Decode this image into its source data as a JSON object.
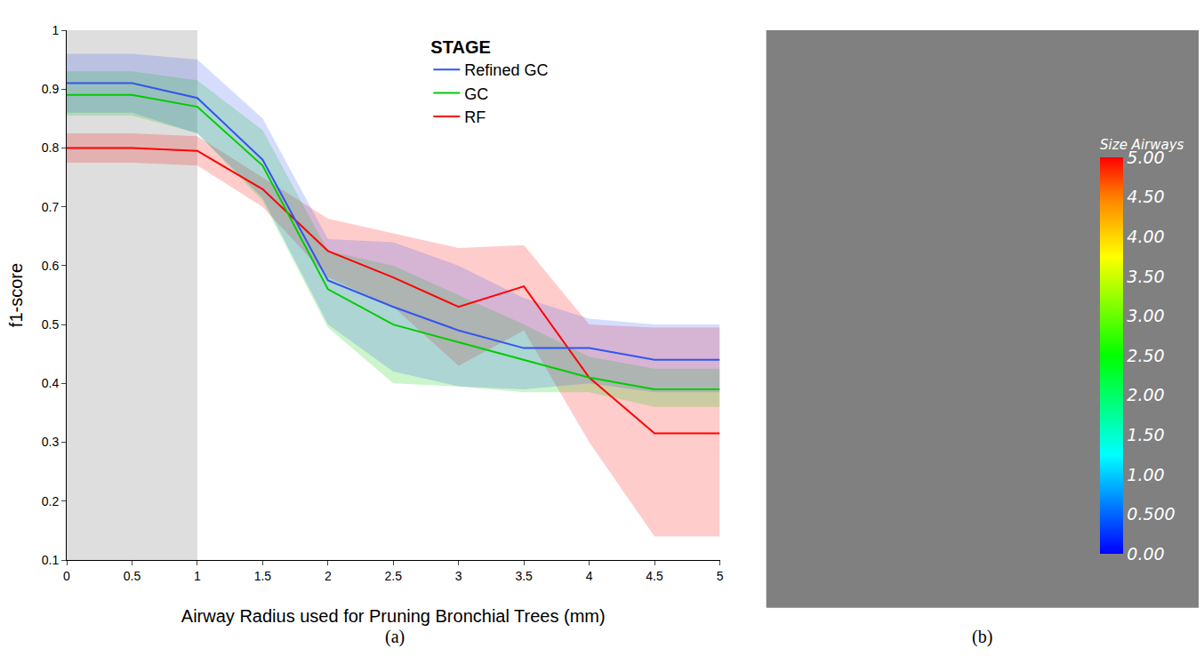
{
  "chart_data": [
    {
      "type": "line",
      "label": "(a)",
      "x_label": "Airway Radius used for Pruning Bronchial Trees (mm)",
      "y_label": "f1-score",
      "x": [
        0,
        0.5,
        1,
        1.5,
        2,
        2.5,
        3,
        3.5,
        4,
        4.5,
        5
      ],
      "xlim": [
        0,
        5
      ],
      "xticks": [
        0,
        0.5,
        1,
        1.5,
        2,
        2.5,
        3,
        3.5,
        4,
        4.5,
        5
      ],
      "ylim": [
        0.1,
        1
      ],
      "yticks": [
        0.1,
        0.2,
        0.3,
        0.4,
        0.5,
        0.6,
        0.7,
        0.8,
        0.9,
        1
      ],
      "shaded_x": [
        0,
        1
      ],
      "legend_title": "STAGE",
      "legend": "upper center",
      "grid": false,
      "series": [
        {
          "name": "RF",
          "color": "#ff0000",
          "values": [
            0.8,
            0.8,
            0.795,
            0.73,
            0.625,
            0.58,
            0.53,
            0.565,
            0.41,
            0.315,
            0.315
          ],
          "lower": [
            0.775,
            0.775,
            0.77,
            0.7,
            0.58,
            0.53,
            0.43,
            0.49,
            0.3,
            0.14,
            0.14
          ],
          "upper": [
            0.825,
            0.825,
            0.82,
            0.75,
            0.68,
            0.655,
            0.63,
            0.635,
            0.5,
            0.495,
            0.495
          ]
        },
        {
          "name": "GC",
          "color": "#00cc00",
          "values": [
            0.89,
            0.89,
            0.87,
            0.77,
            0.56,
            0.5,
            0.47,
            0.44,
            0.41,
            0.39,
            0.39
          ],
          "lower": [
            0.855,
            0.855,
            0.825,
            0.71,
            0.495,
            0.4,
            0.395,
            0.385,
            0.385,
            0.36,
            0.36
          ],
          "upper": [
            0.93,
            0.93,
            0.915,
            0.83,
            0.625,
            0.6,
            0.55,
            0.5,
            0.445,
            0.425,
            0.425
          ]
        },
        {
          "name": "Refined GC",
          "color": "#3355ee",
          "values": [
            0.91,
            0.91,
            0.885,
            0.78,
            0.575,
            0.53,
            0.49,
            0.46,
            0.46,
            0.44,
            0.44
          ],
          "lower": [
            0.86,
            0.86,
            0.825,
            0.715,
            0.5,
            0.42,
            0.395,
            0.39,
            0.4,
            0.385,
            0.385
          ],
          "upper": [
            0.96,
            0.96,
            0.95,
            0.85,
            0.645,
            0.64,
            0.6,
            0.545,
            0.51,
            0.5,
            0.5
          ]
        }
      ]
    },
    {
      "type": "image",
      "label": "(b)",
      "colorbar": {
        "title": "Size Airways",
        "range": [
          0,
          5
        ],
        "ticks": [
          {
            "value": 0,
            "label": "0.00"
          },
          {
            "value": 0.5,
            "label": "0.500"
          },
          {
            "value": 1,
            "label": "1.00"
          },
          {
            "value": 1.5,
            "label": "1.50"
          },
          {
            "value": 2,
            "label": "2.00"
          },
          {
            "value": 2.5,
            "label": "2.50"
          },
          {
            "value": 3,
            "label": "3.00"
          },
          {
            "value": 3.5,
            "label": "3.50"
          },
          {
            "value": 4,
            "label": "4.00"
          },
          {
            "value": 4.5,
            "label": "4.50"
          },
          {
            "value": 5,
            "label": "5.00"
          }
        ]
      }
    }
  ]
}
